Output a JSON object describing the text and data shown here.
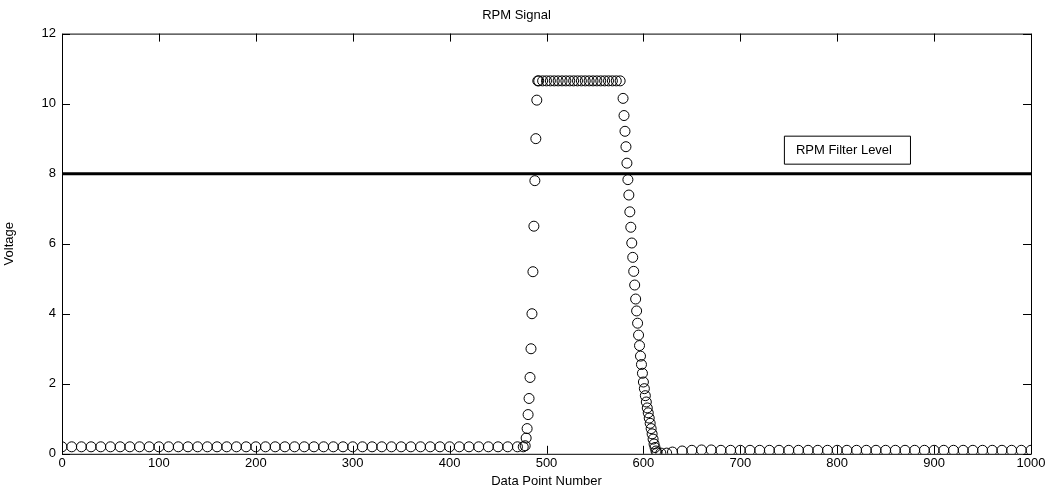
{
  "chart_data": {
    "type": "scatter",
    "title": "RPM Signal",
    "xlabel": "Data Point Number",
    "ylabel": "Voltage",
    "xlim": [
      0,
      1000
    ],
    "ylim": [
      0,
      12
    ],
    "xticks": [
      0,
      100,
      200,
      300,
      400,
      500,
      600,
      700,
      800,
      900,
      1000
    ],
    "yticks": [
      0,
      2,
      4,
      6,
      8,
      10,
      12
    ],
    "grid": false,
    "legend": false,
    "marker": "circle",
    "ref_lines": [
      {
        "axis": "y",
        "value": 8,
        "label": "RPM Filter Level",
        "color": "#000000"
      }
    ],
    "series": [
      {
        "color": "#000000",
        "x": [
          0,
          10,
          20,
          30,
          40,
          50,
          60,
          70,
          80,
          90,
          100,
          110,
          120,
          130,
          140,
          150,
          160,
          170,
          180,
          190,
          200,
          210,
          220,
          230,
          240,
          250,
          260,
          270,
          280,
          290,
          300,
          310,
          320,
          330,
          340,
          350,
          360,
          370,
          380,
          390,
          400,
          410,
          420,
          430,
          440,
          450,
          460,
          470,
          476,
          478,
          479,
          480,
          481,
          482,
          483,
          484,
          485,
          486,
          487,
          488,
          489,
          490,
          491,
          492,
          496,
          500,
          504,
          508,
          512,
          516,
          520,
          524,
          528,
          532,
          536,
          540,
          544,
          548,
          552,
          556,
          560,
          564,
          568,
          572,
          576,
          579,
          580,
          581,
          582,
          583,
          584,
          585,
          586,
          587,
          588,
          589,
          590,
          591,
          592,
          593,
          594,
          595,
          596,
          597,
          598,
          599,
          600,
          601,
          602,
          603,
          604,
          605,
          606,
          607,
          608,
          609,
          610,
          611,
          612,
          613,
          614,
          618,
          624,
          630,
          640,
          650,
          660,
          670,
          680,
          690,
          700,
          710,
          720,
          730,
          740,
          750,
          760,
          770,
          780,
          790,
          800,
          810,
          820,
          830,
          840,
          850,
          860,
          870,
          880,
          890,
          900,
          910,
          920,
          930,
          940,
          950,
          960,
          970,
          980,
          990,
          1000
        ],
        "values": [
          0.2,
          0.2,
          0.2,
          0.2,
          0.2,
          0.2,
          0.2,
          0.2,
          0.2,
          0.2,
          0.2,
          0.2,
          0.2,
          0.2,
          0.2,
          0.2,
          0.2,
          0.2,
          0.2,
          0.2,
          0.2,
          0.2,
          0.2,
          0.2,
          0.2,
          0.2,
          0.2,
          0.2,
          0.2,
          0.2,
          0.2,
          0.2,
          0.2,
          0.2,
          0.2,
          0.2,
          0.2,
          0.2,
          0.2,
          0.2,
          0.2,
          0.2,
          0.2,
          0.2,
          0.2,
          0.2,
          0.2,
          0.2,
          0.2,
          0.23,
          0.45,
          0.72,
          1.12,
          1.58,
          2.18,
          3.0,
          4.0,
          5.2,
          6.5,
          7.8,
          9.0,
          10.1,
          10.65,
          10.65,
          10.65,
          10.65,
          10.65,
          10.65,
          10.65,
          10.65,
          10.65,
          10.65,
          10.65,
          10.65,
          10.65,
          10.65,
          10.65,
          10.65,
          10.65,
          10.65,
          10.65,
          10.65,
          10.65,
          10.65,
          10.65,
          10.15,
          9.66,
          9.21,
          8.77,
          8.3,
          7.83,
          7.39,
          6.91,
          6.47,
          6.02,
          5.61,
          5.21,
          4.82,
          4.42,
          4.08,
          3.73,
          3.39,
          3.09,
          2.79,
          2.55,
          2.3,
          2.05,
          1.86,
          1.66,
          1.48,
          1.31,
          1.17,
          1.02,
          0.87,
          0.72,
          0.57,
          0.42,
          0.28,
          0.18,
          0.08,
          0.03,
          0.02,
          0.02,
          0.05,
          0.08,
          0.1,
          0.11,
          0.11,
          0.1,
          0.1,
          0.1,
          0.1,
          0.1,
          0.1,
          0.1,
          0.1,
          0.1,
          0.1,
          0.1,
          0.1,
          0.1,
          0.1,
          0.1,
          0.1,
          0.1,
          0.1,
          0.1,
          0.1,
          0.1,
          0.1,
          0.1,
          0.1,
          0.1,
          0.1,
          0.1,
          0.1,
          0.1,
          0.1,
          0.1,
          0.1,
          0.1
        ]
      }
    ]
  }
}
